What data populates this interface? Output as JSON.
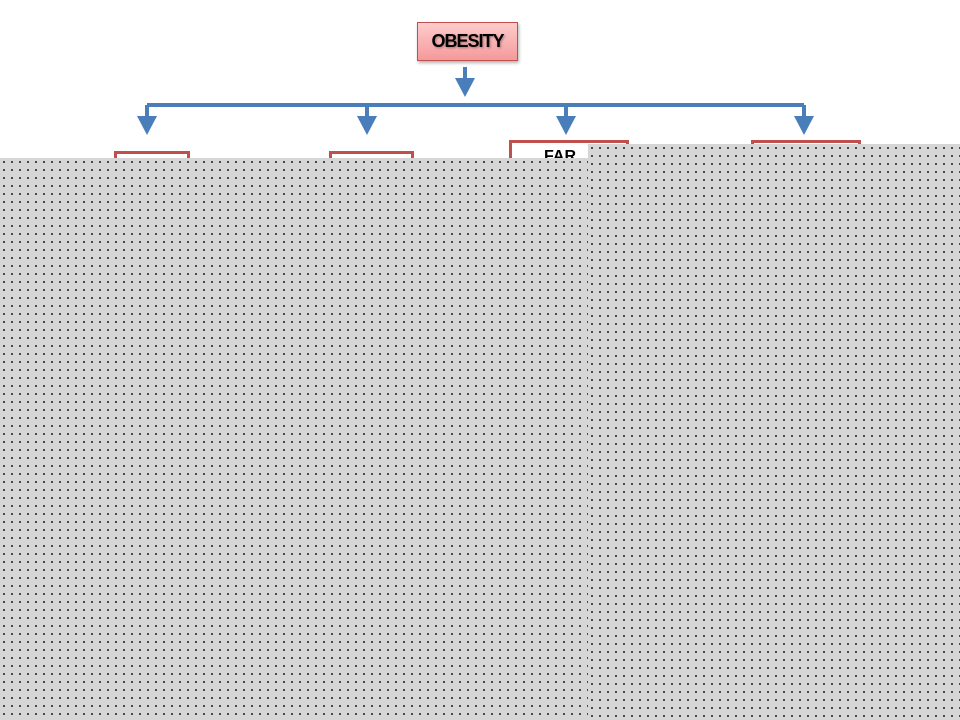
{
  "diagram": {
    "root": {
      "label": "OBESITY"
    },
    "children": [
      {
        "label": ""
      },
      {
        "label": ""
      },
      {
        "label": "FAR"
      },
      {
        "label": ""
      }
    ],
    "colors": {
      "connector": "#4a7ebb",
      "box_border": "#c0504d",
      "root_fill": "#f49a9a",
      "overlay": "#d6d6d6"
    }
  }
}
